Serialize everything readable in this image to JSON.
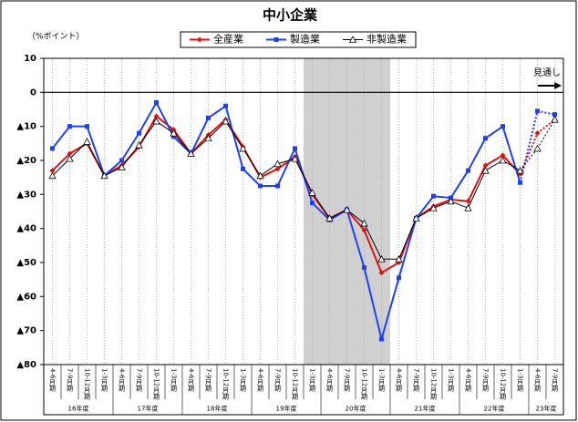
{
  "chart_data": {
    "type": "line",
    "title": "中小企業",
    "y_label": "（%ポイント）",
    "annotation": "見通し",
    "categories": [
      "4-6月期",
      "7-9月期",
      "10-12月期",
      "1-3月期",
      "4-6月期",
      "7-9月期",
      "10-12月期",
      "1-3月期",
      "4-6月期",
      "7-9月期",
      "10-12月期",
      "1-3月期",
      "4-6月期",
      "7-9月期",
      "10-12月期",
      "1-3月期",
      "4-6月期",
      "7-9月期",
      "10-12月期",
      "1-3月期",
      "4-6月期",
      "7-9月期",
      "10-12月期",
      "1-3月期",
      "4-6月期",
      "7-9月期",
      "10-12月期",
      "1-3月期",
      "4-6月期",
      "7-9月期"
    ],
    "fiscal_years": [
      "16年度",
      "17年度",
      "18年度",
      "19年度",
      "20年度",
      "21年度",
      "22年度",
      "23年度"
    ],
    "series": [
      {
        "name": "全産業",
        "color": "#e01010",
        "marker": "diamond",
        "values": [
          -23,
          -18,
          -15,
          -24.5,
          -21.5,
          -16,
          -7,
          -11,
          -18,
          -12.5,
          -8,
          -16,
          -25,
          -22.5,
          -19,
          -30,
          -37,
          -34.5,
          -40.5,
          -53,
          -50,
          -37,
          -33.5,
          -31.5,
          -32,
          -21.5,
          -18.5,
          -24,
          -12,
          -8
        ]
      },
      {
        "name": "製造業",
        "color": "#2040f0",
        "marker": "square",
        "values": [
          -16.5,
          -10,
          -10,
          -24.5,
          -20,
          -12,
          -3,
          -13,
          -18,
          -7.5,
          -4,
          -22.5,
          -27.5,
          -27.5,
          -16.5,
          -32.5,
          -37.5,
          -34.5,
          -51.5,
          -72.5,
          -54.5,
          -37,
          -30.5,
          -31,
          -23,
          -13.5,
          -10,
          -26.5,
          -5.5,
          -6.5
        ]
      },
      {
        "name": "非製造業",
        "color": "#000000",
        "marker": "triangle",
        "values": [
          -24.5,
          -19.5,
          -14.5,
          -24.5,
          -22,
          -15.5,
          -8.5,
          -12,
          -18,
          -13.5,
          -8.5,
          -16.5,
          -24.5,
          -21,
          -19.5,
          -29.5,
          -37,
          -34.5,
          -38.5,
          -49,
          -49,
          -37,
          -34,
          -32,
          -34,
          -23,
          -20,
          -23,
          -16.5,
          -8
        ]
      }
    ],
    "forecast_from": 27,
    "shaded_categories": [
      15,
      19
    ],
    "ylim": [
      -80,
      10
    ],
    "yticks": [
      10,
      0,
      {
        "value": -10,
        "label": "▲10"
      },
      {
        "value": -20,
        "label": "▲20"
      },
      {
        "value": -30,
        "label": "▲30"
      },
      {
        "value": -40,
        "label": "▲40"
      },
      {
        "value": -50,
        "label": "▲50"
      },
      {
        "value": -60,
        "label": "▲60"
      },
      {
        "value": -70,
        "label": "▲70"
      },
      {
        "value": -80,
        "label": "▲80"
      }
    ]
  }
}
